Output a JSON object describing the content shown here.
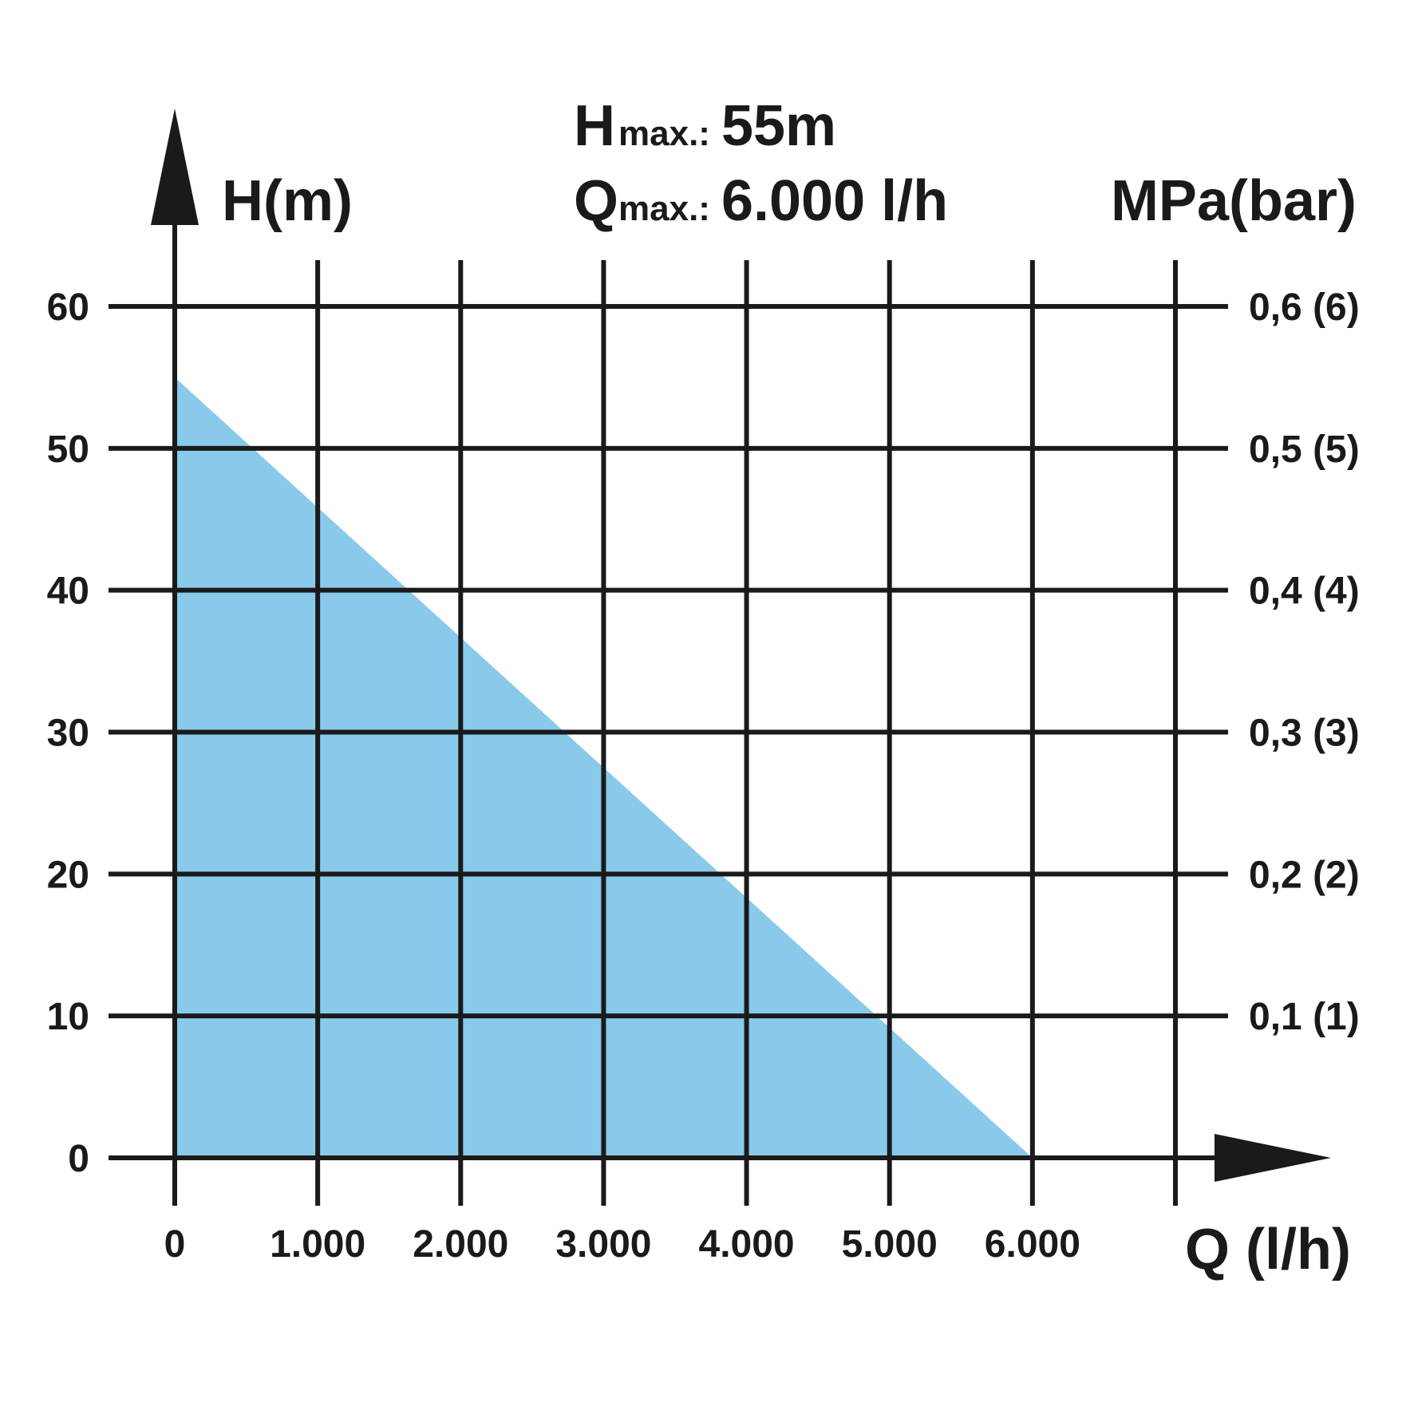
{
  "chart_data": {
    "type": "area",
    "annotations": [
      {
        "symbol": "H",
        "subscript": "max.:",
        "value": "55m"
      },
      {
        "symbol": "Q",
        "subscript": "max.:",
        "value": "6.000 l/h"
      }
    ],
    "xlabel": "Q (l/h)",
    "ylabel": "H(m)",
    "y2label": "MPa(bar)",
    "x": [
      0,
      6000
    ],
    "values": [
      55,
      0
    ],
    "color": "#89c9ea",
    "xlim": [
      0,
      7000
    ],
    "xticks": [
      0,
      {
        "value": 1000,
        "label": "1.000"
      },
      {
        "value": 2000,
        "label": "2.000"
      },
      {
        "value": 3000,
        "label": "3.000"
      },
      {
        "value": 4000,
        "label": "4.000"
      },
      {
        "value": 5000,
        "label": "5.000"
      },
      {
        "value": 6000,
        "label": "6.000"
      },
      {
        "value": 7000,
        "label": null
      }
    ],
    "ylim": [
      0,
      60
    ],
    "yticks": [
      0,
      10,
      20,
      30,
      40,
      50,
      60
    ],
    "y2lim": [
      0,
      0.6
    ],
    "y2ticks": [
      {
        "value": 0.1,
        "label": "0,1 (1)"
      },
      {
        "value": 0.2,
        "label": "0,2 (2)"
      },
      {
        "value": 0.3,
        "label": "0,3 (3)"
      },
      {
        "value": 0.4,
        "label": "0,4 (4)"
      },
      {
        "value": 0.5,
        "label": "0,5 (5)"
      },
      {
        "value": 0.6,
        "label": "0,6 (6)"
      }
    ],
    "grid": true
  }
}
